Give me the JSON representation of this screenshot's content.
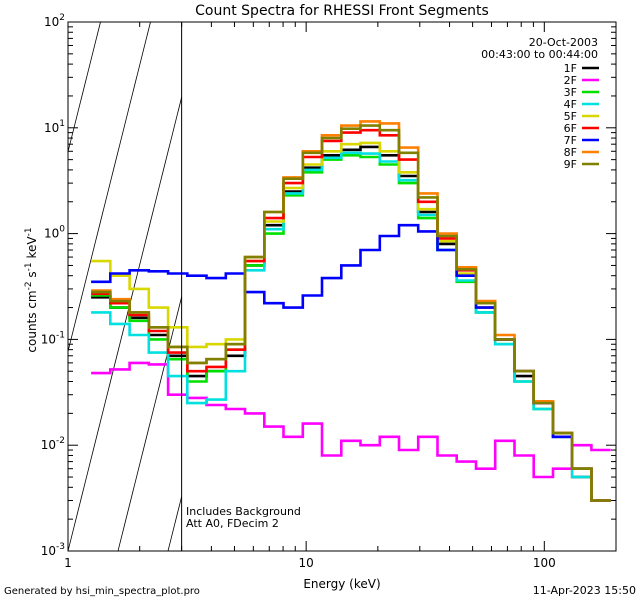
{
  "chart_data": {
    "type": "line",
    "title": "Count Spectra for RHESSI Front Segments",
    "xlabel": "Energy (keV)",
    "ylabel_parts": {
      "base": "counts cm",
      "sup1": "-2",
      "mid": " s",
      "sup2": "-1",
      "mid2": " keV",
      "sup3": "-1"
    },
    "x_scale": "log",
    "y_scale": "log",
    "xlim": [
      1,
      200
    ],
    "ylim": [
      0.001,
      100
    ],
    "x_ticks": [
      {
        "value": 1,
        "label": "1"
      },
      {
        "value": 10,
        "label": "10"
      },
      {
        "value": 100,
        "label": "100"
      }
    ],
    "y_ticks": [
      {
        "value": 0.001,
        "base": "10",
        "exp": "-3"
      },
      {
        "value": 0.01,
        "base": "10",
        "exp": "-2"
      },
      {
        "value": 0.1,
        "base": "10",
        "exp": "-1"
      },
      {
        "value": 1,
        "base": "10",
        "exp": "0"
      },
      {
        "value": 10,
        "base": "10",
        "exp": "1"
      },
      {
        "value": 100,
        "base": "10",
        "exp": "2"
      }
    ],
    "hatched_region": [
      1,
      3
    ],
    "date": "20-Oct-2003",
    "time_range": "00:43:00 to 00:44:00",
    "notes": [
      "Includes Background",
      "Att A0, FDecim 2"
    ],
    "series": [
      {
        "name": "1F",
        "color": "#000000",
        "values": [
          0.25,
          0.2,
          0.16,
          0.11,
          0.07,
          0.045,
          0.05,
          0.07,
          0.5,
          1.2,
          2.5,
          4.2,
          5.5,
          6.2,
          6.6,
          5.5,
          3.5,
          1.6,
          0.8,
          0.4,
          0.2,
          0.1,
          0.045,
          0.025,
          0.012,
          0.005,
          0.003
        ]
      },
      {
        "name": "2F",
        "color": "#ff00ff",
        "values": [
          0.048,
          0.052,
          0.06,
          0.058,
          0.03,
          0.028,
          0.024,
          0.022,
          0.02,
          0.015,
          0.012,
          0.016,
          0.008,
          0.011,
          0.01,
          0.012,
          0.009,
          0.012,
          0.008,
          0.007,
          0.006,
          0.011,
          0.008,
          0.005,
          0.006,
          0.01,
          0.009
        ]
      },
      {
        "name": "3F",
        "color": "#00e000",
        "values": [
          0.26,
          0.2,
          0.15,
          0.1,
          0.065,
          0.04,
          0.05,
          0.08,
          0.5,
          1.0,
          2.3,
          3.8,
          5.0,
          5.5,
          5.3,
          4.5,
          3.0,
          1.4,
          0.7,
          0.35,
          0.18,
          0.09,
          0.04,
          0.022,
          0.013,
          0.006,
          0.003
        ]
      },
      {
        "name": "4F",
        "color": "#00e0e0",
        "values": [
          0.18,
          0.14,
          0.11,
          0.075,
          0.045,
          0.025,
          0.027,
          0.05,
          0.45,
          1.1,
          2.4,
          4.0,
          5.2,
          5.8,
          5.7,
          4.8,
          3.2,
          1.5,
          0.7,
          0.36,
          0.18,
          0.09,
          0.04,
          0.022,
          0.012,
          0.005,
          0.003
        ]
      },
      {
        "name": "5F",
        "color": "#d8d800",
        "values": [
          0.55,
          0.4,
          0.3,
          0.2,
          0.13,
          0.085,
          0.09,
          0.1,
          0.55,
          1.3,
          2.7,
          4.5,
          6.0,
          7.0,
          7.2,
          6.0,
          3.8,
          1.7,
          0.85,
          0.42,
          0.2,
          0.1,
          0.05,
          0.026,
          0.013,
          0.006,
          0.003
        ]
      },
      {
        "name": "6F",
        "color": "#ff0000",
        "values": [
          0.27,
          0.22,
          0.17,
          0.12,
          0.075,
          0.05,
          0.055,
          0.08,
          0.55,
          1.4,
          3.0,
          5.3,
          7.5,
          9.0,
          9.5,
          8.5,
          5.0,
          2.0,
          0.9,
          0.45,
          0.22,
          0.1,
          0.05,
          0.025,
          0.013,
          0.006,
          0.003
        ]
      },
      {
        "name": "7F",
        "color": "#0000ff",
        "values": [
          0.35,
          0.42,
          0.45,
          0.44,
          0.42,
          0.4,
          0.38,
          0.42,
          0.28,
          0.22,
          0.2,
          0.26,
          0.38,
          0.5,
          0.7,
          0.95,
          1.2,
          1.05,
          0.7,
          0.4,
          0.2,
          0.1,
          0.05,
          0.025,
          0.012,
          0.006,
          0.003
        ]
      },
      {
        "name": "8F",
        "color": "#ff8000",
        "values": [
          0.29,
          0.24,
          0.18,
          0.13,
          0.085,
          0.06,
          0.065,
          0.09,
          0.6,
          1.6,
          3.4,
          6.0,
          8.5,
          10.5,
          11.5,
          11.0,
          6.5,
          2.4,
          1.0,
          0.48,
          0.23,
          0.11,
          0.05,
          0.026,
          0.013,
          0.006,
          0.003
        ]
      },
      {
        "name": "9F",
        "color": "#808000",
        "values": [
          0.28,
          0.23,
          0.18,
          0.13,
          0.085,
          0.06,
          0.065,
          0.09,
          0.6,
          1.6,
          3.3,
          5.8,
          8.0,
          9.8,
          10.5,
          9.5,
          5.8,
          2.2,
          0.95,
          0.46,
          0.22,
          0.1,
          0.05,
          0.025,
          0.013,
          0.006,
          0.003
        ]
      }
    ]
  },
  "footer": {
    "generated_by": "Generated by hsi_min_spectra_plot.pro",
    "timestamp": "11-Apr-2023 15:50"
  }
}
